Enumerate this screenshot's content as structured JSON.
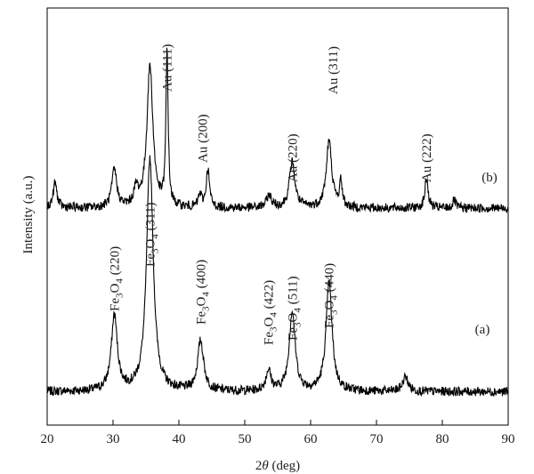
{
  "chart_data": {
    "type": "line",
    "title": "",
    "xlabel": "2θ (deg)",
    "xlabel_prefix": "2",
    "xlabel_var": "θ",
    "xlabel_suffix": " (deg)",
    "ylabel": "Intensity (a.u.)",
    "xlim": [
      20,
      90
    ],
    "ylim": [
      0,
      100
    ],
    "xticks": [
      20,
      30,
      40,
      50,
      60,
      70,
      80,
      90
    ],
    "yticks_shown": false,
    "grid": false,
    "line_color": "#000000",
    "series": [
      {
        "label": "(a)",
        "baseline": 8,
        "peaks": [
          {
            "x": 30.2,
            "height": 18,
            "width": 0.55
          },
          {
            "x": 35.6,
            "height": 56,
            "width": 0.6
          },
          {
            "x": 43.3,
            "height": 12,
            "width": 0.55
          },
          {
            "x": 53.6,
            "height": 5,
            "width": 0.45
          },
          {
            "x": 57.2,
            "height": 19,
            "width": 0.55
          },
          {
            "x": 62.8,
            "height": 26,
            "width": 0.55
          },
          {
            "x": 74.4,
            "height": 3.5,
            "width": 0.5
          }
        ]
      },
      {
        "label": "(b)",
        "baseline": 52,
        "peaks": [
          {
            "x": 21.2,
            "height": 6,
            "width": 0.35
          },
          {
            "x": 30.2,
            "height": 9,
            "width": 0.45
          },
          {
            "x": 33.5,
            "height": 4,
            "width": 0.4
          },
          {
            "x": 35.6,
            "height": 34,
            "width": 0.55
          },
          {
            "x": 38.2,
            "height": 37,
            "width": 0.2
          },
          {
            "x": 43.2,
            "height": 3,
            "width": 0.3
          },
          {
            "x": 44.4,
            "height": 9,
            "width": 0.3
          },
          {
            "x": 53.7,
            "height": 3,
            "width": 0.45
          },
          {
            "x": 57.2,
            "height": 11,
            "width": 0.5
          },
          {
            "x": 62.8,
            "height": 16,
            "width": 0.5
          },
          {
            "x": 64.6,
            "height": 6,
            "width": 0.25
          },
          {
            "x": 77.6,
            "height": 7,
            "width": 0.3
          },
          {
            "x": 81.8,
            "height": 2,
            "width": 0.25
          }
        ]
      }
    ],
    "annotations_a": [
      {
        "x": 30.2,
        "prefix": "Fe",
        "sub1": "3",
        "mid": "O",
        "sub2": "4",
        "suffix": " (220)"
      },
      {
        "x": 35.6,
        "prefix": "Fe",
        "sub1": "3",
        "mid": "O",
        "sub2": "4",
        "suffix": " (311)"
      },
      {
        "x": 43.3,
        "prefix": "Fe",
        "sub1": "3",
        "mid": "O",
        "sub2": "4",
        "suffix": " (400)"
      },
      {
        "x": 53.6,
        "prefix": "Fe",
        "sub1": "3",
        "mid": "O",
        "sub2": "4",
        "suffix": " (422)"
      },
      {
        "x": 57.2,
        "prefix": "Fe",
        "sub1": "3",
        "mid": "O",
        "sub2": "4",
        "suffix": " (511)"
      },
      {
        "x": 62.8,
        "prefix": "Fe",
        "sub1": "3",
        "mid": "O",
        "sub2": "4",
        "suffix": " (440)"
      }
    ],
    "annotations_b": [
      {
        "x": 38.2,
        "text": "Au (111)"
      },
      {
        "x": 43.6,
        "text": "Au (200)"
      },
      {
        "x": 57.2,
        "text": "Au (220)"
      },
      {
        "x": 63.4,
        "text": "Au (311)"
      },
      {
        "x": 77.6,
        "text": "Au (222)"
      }
    ]
  }
}
